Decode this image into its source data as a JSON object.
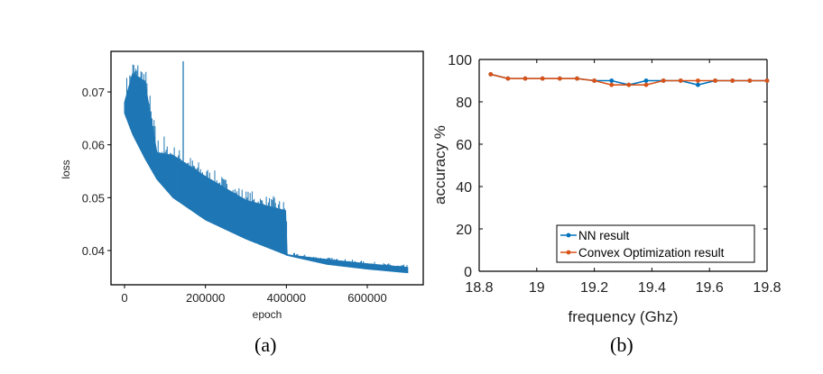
{
  "chart_data": [
    {
      "type": "line",
      "panel_label": "(a)",
      "title": "",
      "xlabel": "epoch",
      "ylabel": "loss",
      "xlim": [
        0,
        700000
      ],
      "ylim": [
        0.034,
        0.0775
      ],
      "xticks": [
        0,
        200000,
        400000,
        600000
      ],
      "xtick_labels": [
        "0",
        "200000",
        "400000",
        "600000"
      ],
      "yticks": [
        0.04,
        0.05,
        0.06,
        0.07
      ],
      "ytick_labels": [
        "0.04",
        "0.05",
        "0.06",
        "0.07"
      ],
      "color": "#1f77b4",
      "series": [
        {
          "name": "loss lower envelope",
          "x": [
            0,
            20000,
            50000,
            80000,
            120000,
            200000,
            300000,
            399000,
            401000,
            500000,
            600000,
            700000
          ],
          "y": [
            0.066,
            0.062,
            0.0575,
            0.0535,
            0.05,
            0.0458,
            0.0422,
            0.0392,
            0.0391,
            0.0374,
            0.0365,
            0.0358
          ]
        },
        {
          "name": "loss upper envelope",
          "x": [
            0,
            20000,
            50000,
            80000,
            120000,
            200000,
            300000,
            399000,
            401000,
            500000,
            600000,
            700000
          ],
          "y": [
            0.068,
            0.0735,
            0.072,
            0.0585,
            0.058,
            0.054,
            0.0495,
            0.0475,
            0.0392,
            0.0383,
            0.0375,
            0.0368
          ]
        }
      ],
      "spike": {
        "x": 145000,
        "y": 0.0758
      }
    },
    {
      "type": "line",
      "panel_label": "(b)",
      "title": "",
      "xlabel": "frequency (Ghz)",
      "ylabel": "accuracy %",
      "xlim": [
        18.8,
        19.8
      ],
      "ylim": [
        0,
        100
      ],
      "xticks": [
        18.8,
        19,
        19.2,
        19.4,
        19.6,
        19.8
      ],
      "xtick_labels": [
        "18.8",
        "19",
        "19.2",
        "19.4",
        "19.6",
        "19.8"
      ],
      "yticks": [
        0,
        20,
        40,
        60,
        80,
        100
      ],
      "ytick_labels": [
        "0",
        "20",
        "40",
        "60",
        "80",
        "100"
      ],
      "legend_position": "bottom-right",
      "x": [
        18.84,
        18.9,
        18.96,
        19.02,
        19.08,
        19.14,
        19.2,
        19.26,
        19.32,
        19.38,
        19.44,
        19.5,
        19.56,
        19.62,
        19.68,
        19.74,
        19.8
      ],
      "series": [
        {
          "name": "NN result",
          "color": "#0072bd",
          "values": [
            93,
            91,
            91,
            91,
            91,
            91,
            90,
            90,
            88,
            90,
            90,
            90,
            88,
            90,
            90,
            90,
            90
          ]
        },
        {
          "name": "Convex Optimization result",
          "color": "#d95319",
          "values": [
            93,
            91,
            91,
            91,
            91,
            91,
            90,
            88,
            88,
            88,
            90,
            90,
            90,
            90,
            90,
            90,
            90
          ]
        }
      ]
    }
  ]
}
